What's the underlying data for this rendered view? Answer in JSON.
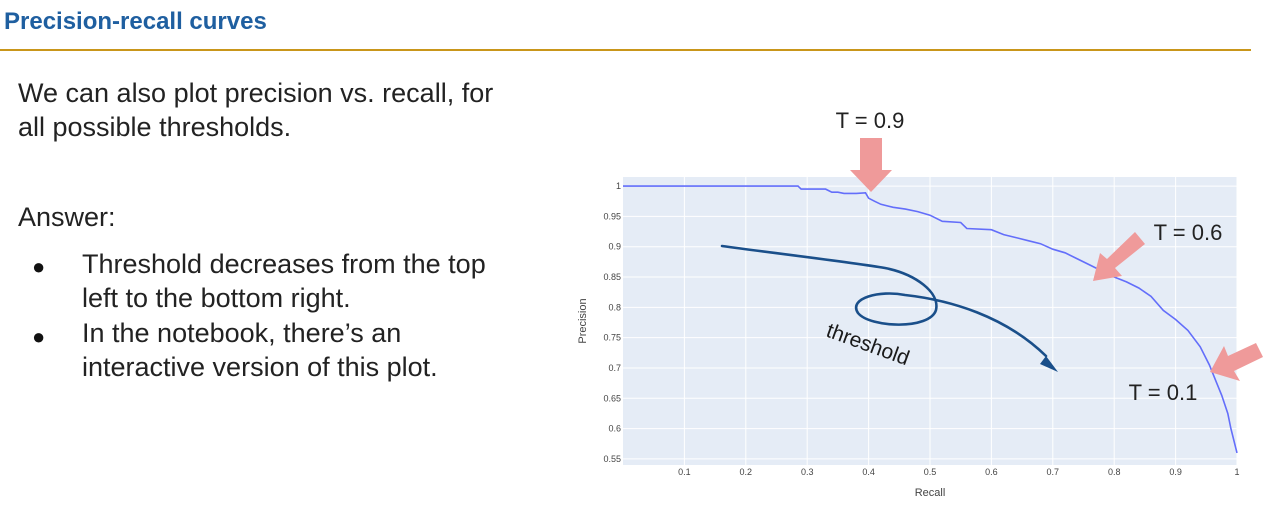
{
  "slide": {
    "title": "Precision-recall curves",
    "intro_line1": "We can also plot precision vs. recall, for",
    "intro_line2": "all possible thresholds.",
    "answer_label": "Answer:",
    "bullets": [
      {
        "line1": "Threshold decreases from the top",
        "line2": "left to the bottom right."
      },
      {
        "line1": "In the notebook, there’s an",
        "line2": "interactive version of this plot."
      }
    ]
  },
  "colors": {
    "title": "#1f5fa0",
    "rule": "#c9961a",
    "plot_bg": "#e5ecf6",
    "curve": "#636efa",
    "annotation_arrow": "#ef9a9a",
    "threshold_arrow": "#1a4f8a"
  },
  "annotations": {
    "t09": "T = 0.9",
    "t06": "T = 0.6",
    "t01": "T = 0.1",
    "threshold": "threshold"
  },
  "chart_data": {
    "type": "line",
    "xlabel": "Recall",
    "ylabel": "Precision",
    "xlim": [
      0,
      1
    ],
    "ylim": [
      0.54,
      1.015
    ],
    "x_ticks": [
      "0.1",
      "0.2",
      "0.3",
      "0.4",
      "0.5",
      "0.6",
      "0.7",
      "0.8",
      "0.9",
      "1"
    ],
    "y_ticks": [
      "0.55",
      "0.6",
      "0.65",
      "0.7",
      "0.75",
      "0.8",
      "0.85",
      "0.9",
      "0.95",
      "1"
    ],
    "grid": true,
    "series": [
      {
        "x": [
          0.0,
          0.1,
          0.2,
          0.25,
          0.285,
          0.29,
          0.33,
          0.34,
          0.35,
          0.36,
          0.38,
          0.395,
          0.4,
          0.41,
          0.42,
          0.44,
          0.46,
          0.48,
          0.5,
          0.52,
          0.55,
          0.56,
          0.6,
          0.62,
          0.64,
          0.66,
          0.68,
          0.7,
          0.72,
          0.74,
          0.76,
          0.78,
          0.8,
          0.82,
          0.84,
          0.86,
          0.88,
          0.9,
          0.92,
          0.94,
          0.955,
          0.965,
          0.975,
          0.985,
          0.99,
          1.0
        ],
        "y": [
          1.0,
          1.0,
          1.0,
          1.0,
          1.0,
          0.995,
          0.995,
          0.99,
          0.99,
          0.988,
          0.988,
          0.989,
          0.98,
          0.975,
          0.97,
          0.965,
          0.962,
          0.958,
          0.952,
          0.942,
          0.94,
          0.93,
          0.928,
          0.92,
          0.915,
          0.91,
          0.905,
          0.896,
          0.89,
          0.88,
          0.87,
          0.86,
          0.85,
          0.842,
          0.832,
          0.818,
          0.795,
          0.78,
          0.762,
          0.735,
          0.705,
          0.68,
          0.655,
          0.625,
          0.6,
          0.56
        ]
      }
    ]
  }
}
